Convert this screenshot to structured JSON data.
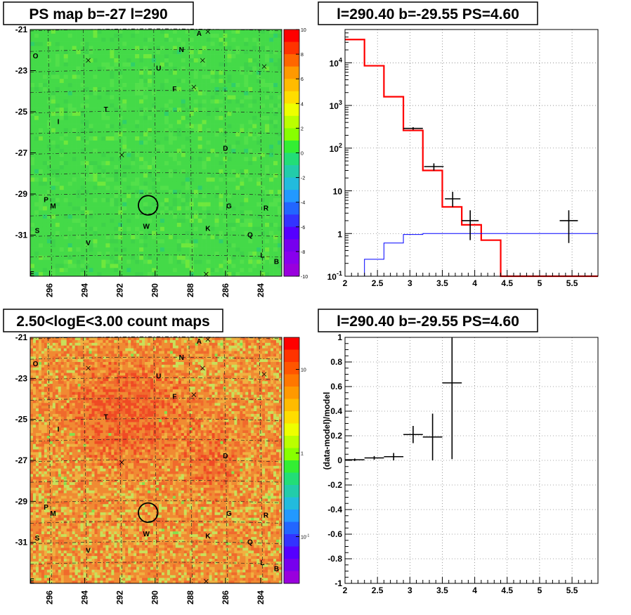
{
  "chart_data": [
    {
      "type": "heatmap",
      "title": "PS map b=-27 l=290",
      "x_ticks": [
        "296",
        "294",
        "292",
        "290",
        "288",
        "286",
        "284"
      ],
      "x_tick_values": [
        296,
        294,
        292,
        290,
        288,
        286,
        284
      ],
      "y_ticks": [
        "-21",
        "-23",
        "-25",
        "-27",
        "-29",
        "-31"
      ],
      "y_tick_values": [
        -21,
        -23,
        -25,
        -27,
        -29,
        -31
      ],
      "xlim": [
        297.1,
        282.8
      ],
      "ylim": [
        -33.0,
        -21.0
      ],
      "colorbar": {
        "ticks": [
          "10",
          "8",
          "6",
          "4",
          "2",
          "0",
          "-2",
          "-4",
          "-6",
          "-8",
          "-10"
        ],
        "range": [
          -10,
          10
        ]
      },
      "background_color": "#4ade4a",
      "grid": "dashed",
      "sources": [
        {
          "label": "A",
          "l": 287.5,
          "b": -21.3
        },
        {
          "label": "N",
          "l": 288.5,
          "b": -22.1
        },
        {
          "label": "O",
          "l": 296.8,
          "b": -22.4
        },
        {
          "label": "U",
          "l": 289.8,
          "b": -23.0
        },
        {
          "label": "F",
          "l": 288.9,
          "b": -24.0
        },
        {
          "label": "T",
          "l": 292.8,
          "b": -25.0
        },
        {
          "label": "I",
          "l": 295.5,
          "b": -25.6
        },
        {
          "label": "D",
          "l": 286.0,
          "b": -26.9
        },
        {
          "label": "P",
          "l": 296.2,
          "b": -29.4
        },
        {
          "label": "M",
          "l": 295.8,
          "b": -29.7
        },
        {
          "label": "G",
          "l": 285.8,
          "b": -29.7
        },
        {
          "label": "R",
          "l": 283.7,
          "b": -29.8
        },
        {
          "label": "W",
          "l": 290.5,
          "b": -30.7
        },
        {
          "label": "K",
          "l": 287.0,
          "b": -30.8
        },
        {
          "label": "S",
          "l": 296.7,
          "b": -30.9
        },
        {
          "label": "Q",
          "l": 284.6,
          "b": -31.1
        },
        {
          "label": "V",
          "l": 293.8,
          "b": -31.5
        },
        {
          "label": "L",
          "l": 283.9,
          "b": -32.1
        },
        {
          "label": "B",
          "l": 283.1,
          "b": -32.4
        },
        {
          "label": "E",
          "l": 297.0,
          "b": -33.0
        }
      ],
      "crosses": [
        {
          "l": 287.0,
          "b": -21.1
        },
        {
          "l": 293.8,
          "b": -22.5
        },
        {
          "l": 287.3,
          "b": -22.5
        },
        {
          "l": 283.8,
          "b": -22.8
        },
        {
          "l": 287.8,
          "b": -23.8
        },
        {
          "l": 291.9,
          "b": -27.1
        },
        {
          "l": 287.1,
          "b": -32.9
        }
      ],
      "circle": {
        "l": 290.4,
        "b": -29.55,
        "r": 0.55
      }
    },
    {
      "type": "line",
      "title": "l=290.40 b=-29.55 PS=4.60",
      "x_ticks": [
        "2",
        "2.5",
        "3",
        "3.5",
        "4",
        "4.5",
        "5",
        "5.5"
      ],
      "y_ticks": [
        "10^-1",
        "1",
        "10",
        "10^2",
        "10^3",
        "10^4"
      ],
      "xlim": [
        2.0,
        5.9
      ],
      "ylim": [
        0.1,
        60000
      ],
      "yscale": "log",
      "grid": true,
      "series": [
        {
          "color": "#ff0000",
          "type": "step",
          "edges": [
            2.0,
            2.3,
            2.6,
            2.9,
            3.2,
            3.5,
            3.8,
            4.1,
            4.4,
            5.9
          ],
          "values": [
            35000,
            8500,
            1600,
            260,
            30,
            4.2,
            1.6,
            0.7,
            0.1
          ]
        },
        {
          "color": "#0000ff",
          "type": "step",
          "edges": [
            2.0,
            2.3,
            2.6,
            2.9,
            3.2,
            5.9
          ],
          "values": [
            0.1,
            0.25,
            0.6,
            0.95,
            1.0
          ]
        }
      ],
      "points": [
        {
          "x": 3.05,
          "y": 290,
          "xerr": 0.15,
          "ylo": 270,
          "yhi": 310
        },
        {
          "x": 3.37,
          "y": 37,
          "xerr": 0.15,
          "ylo": 30,
          "yhi": 44
        },
        {
          "x": 3.66,
          "y": 6.5,
          "xerr": 0.12,
          "ylo": 4.2,
          "yhi": 9.5
        },
        {
          "x": 3.93,
          "y": 2.0,
          "xerr": 0.13,
          "ylo": 0.7,
          "yhi": 3.5
        },
        {
          "x": 5.45,
          "y": 2.0,
          "xerr": 0.14,
          "ylo": 0.6,
          "yhi": 3.5
        }
      ]
    },
    {
      "type": "heatmap",
      "title": "2.50<logE<3.00 count maps",
      "x_ticks": [
        "296",
        "294",
        "292",
        "290",
        "288",
        "286",
        "284"
      ],
      "x_tick_values": [
        296,
        294,
        292,
        290,
        288,
        286,
        284
      ],
      "y_ticks": [
        "-21",
        "-23",
        "-25",
        "-27",
        "-29",
        "-31"
      ],
      "y_tick_values": [
        -21,
        -23,
        -25,
        -27,
        -29,
        -31
      ],
      "xlim": [
        297.1,
        282.8
      ],
      "ylim": [
        -33.0,
        -21.0
      ],
      "colorbar": {
        "ticks": [
          "10",
          "1",
          "10^-1"
        ],
        "scale": "log"
      },
      "background_color": "#f08030",
      "grid": "dashed",
      "sources_ref": "same as first map",
      "circle": {
        "l": 290.4,
        "b": -29.55,
        "r": 0.55
      }
    },
    {
      "type": "scatter",
      "title": "l=290.40 b=-29.55 PS=4.60",
      "ylabel": "(data-model)/model",
      "x_ticks": [
        "2",
        "2.5",
        "3",
        "3.5",
        "4",
        "4.5",
        "5",
        "5.5"
      ],
      "y_ticks": [
        "1",
        "0.8",
        "0.6",
        "0.4",
        "0.2",
        "0",
        "-0.2",
        "-0.4",
        "-0.6",
        "-0.8",
        "-1"
      ],
      "xlim": [
        2.0,
        5.9
      ],
      "ylim": [
        -1.0,
        1.0
      ],
      "grid": true,
      "points": [
        {
          "x": 2.15,
          "y": 0.005,
          "xerr": 0.15,
          "yerr": 0.01
        },
        {
          "x": 2.45,
          "y": 0.02,
          "xerr": 0.15,
          "yerr": 0.015
        },
        {
          "x": 2.75,
          "y": 0.03,
          "xerr": 0.15,
          "yerr": 0.03
        },
        {
          "x": 3.05,
          "y": 0.21,
          "xerr": 0.15,
          "yerr": 0.07
        },
        {
          "x": 3.35,
          "y": 0.19,
          "xerr": 0.15,
          "yerr": 0.19
        },
        {
          "x": 3.65,
          "y": 0.63,
          "xerr": 0.15,
          "yerr": 0.62
        }
      ]
    }
  ]
}
